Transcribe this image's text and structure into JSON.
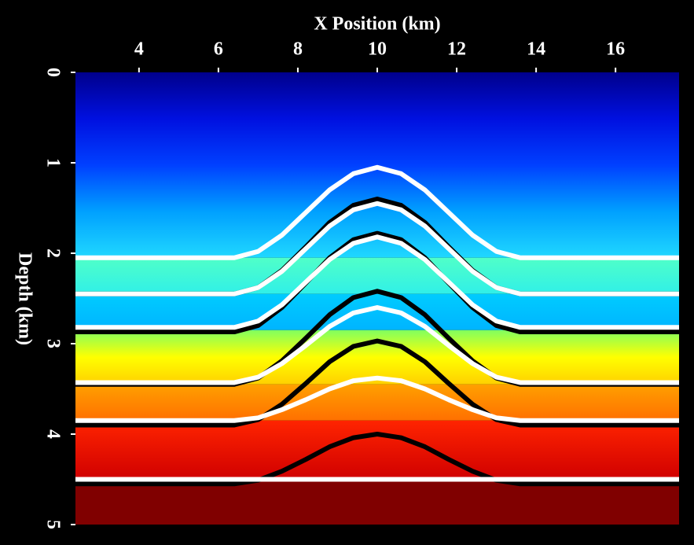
{
  "chart_data": {
    "type": "line",
    "title": "X Position (km)",
    "y_label": "Depth (km)",
    "xlim": [
      2.4,
      17.6
    ],
    "xticks": [
      4,
      6,
      8,
      10,
      12,
      14,
      16
    ],
    "ylim": [
      0,
      5
    ],
    "yticks": [
      0,
      1,
      2,
      3,
      4,
      5
    ],
    "y_inverted": true,
    "background": "#000000",
    "layers": [
      {
        "top": 0,
        "bottom": 2.05,
        "colors": [
          "#00008c",
          "#0010e0",
          "#0040ff",
          "#00a0ff",
          "#20d8ff"
        ]
      },
      {
        "top": 2.05,
        "bottom": 2.45,
        "colors": [
          "#50ffc8",
          "#30f0e8"
        ]
      },
      {
        "top": 2.45,
        "bottom": 2.85,
        "colors": [
          "#00ccff",
          "#00b4ff"
        ]
      },
      {
        "top": 2.85,
        "bottom": 3.45,
        "colors": [
          "#80ff60",
          "#ffff00",
          "#ffd000"
        ]
      },
      {
        "top": 3.45,
        "bottom": 3.85,
        "colors": [
          "#ffa000",
          "#ff7000"
        ]
      },
      {
        "top": 3.85,
        "bottom": 4.5,
        "colors": [
          "#ff2400",
          "#d00000"
        ]
      },
      {
        "top": 4.5,
        "bottom": 5,
        "colors": [
          "#800000",
          "#800000"
        ]
      }
    ],
    "x": [
      2.4,
      6.4,
      7.0,
      7.6,
      8.2,
      8.8,
      9.4,
      10,
      10.6,
      11.2,
      11.8,
      12.4,
      13.0,
      13.6,
      17.6
    ],
    "series": [
      {
        "color": "#000000",
        "values": [
          2.45,
          2.45,
          2.38,
          2.19,
          1.93,
          1.66,
          1.47,
          1.4,
          1.47,
          1.66,
          1.93,
          2.19,
          2.38,
          2.45,
          2.45
        ]
      },
      {
        "color": "#000000",
        "values": [
          2.87,
          2.87,
          2.8,
          2.6,
          2.33,
          2.05,
          1.85,
          1.78,
          1.85,
          2.05,
          2.33,
          2.6,
          2.8,
          2.87,
          2.87
        ]
      },
      {
        "color": "#000000",
        "values": [
          3.45,
          3.45,
          3.38,
          3.19,
          2.94,
          2.68,
          2.49,
          2.42,
          2.49,
          2.68,
          2.94,
          3.19,
          3.38,
          3.45,
          3.45
        ]
      },
      {
        "color": "#000000",
        "values": [
          3.9,
          3.9,
          3.84,
          3.67,
          3.44,
          3.2,
          3.03,
          2.97,
          3.03,
          3.2,
          3.44,
          3.67,
          3.84,
          3.9,
          3.9
        ]
      },
      {
        "color": "#000000",
        "values": [
          4.55,
          4.55,
          4.51,
          4.41,
          4.28,
          4.14,
          4.04,
          4.0,
          4.04,
          4.14,
          4.28,
          4.41,
          4.51,
          4.55,
          4.55
        ]
      },
      {
        "color": "#ffffff",
        "values": [
          2.05,
          2.05,
          1.98,
          1.8,
          1.55,
          1.3,
          1.12,
          1.05,
          1.12,
          1.3,
          1.55,
          1.8,
          1.98,
          2.05,
          2.05
        ]
      },
      {
        "color": "#ffffff",
        "values": [
          2.45,
          2.45,
          2.38,
          2.2,
          1.95,
          1.7,
          1.52,
          1.45,
          1.52,
          1.7,
          1.95,
          2.2,
          2.38,
          2.45,
          2.45
        ]
      },
      {
        "color": "#ffffff",
        "values": [
          2.82,
          2.82,
          2.75,
          2.57,
          2.32,
          2.07,
          1.89,
          1.82,
          1.89,
          2.07,
          2.32,
          2.57,
          2.75,
          2.82,
          2.82
        ]
      },
      {
        "color": "#ffffff",
        "values": [
          3.43,
          3.43,
          3.37,
          3.22,
          3.02,
          2.81,
          2.66,
          2.6,
          2.66,
          2.81,
          3.02,
          3.22,
          3.37,
          3.43,
          3.43
        ]
      },
      {
        "color": "#ffffff",
        "values": [
          3.85,
          3.85,
          3.82,
          3.73,
          3.62,
          3.5,
          3.41,
          3.38,
          3.41,
          3.5,
          3.62,
          3.73,
          3.82,
          3.85,
          3.85
        ]
      },
      {
        "color": "#ffffff",
        "values": [
          4.5,
          4.5,
          4.5,
          4.5,
          4.5,
          4.5,
          4.5,
          4.5,
          4.5,
          4.5,
          4.5,
          4.5,
          4.5,
          4.5,
          4.5
        ]
      }
    ]
  }
}
